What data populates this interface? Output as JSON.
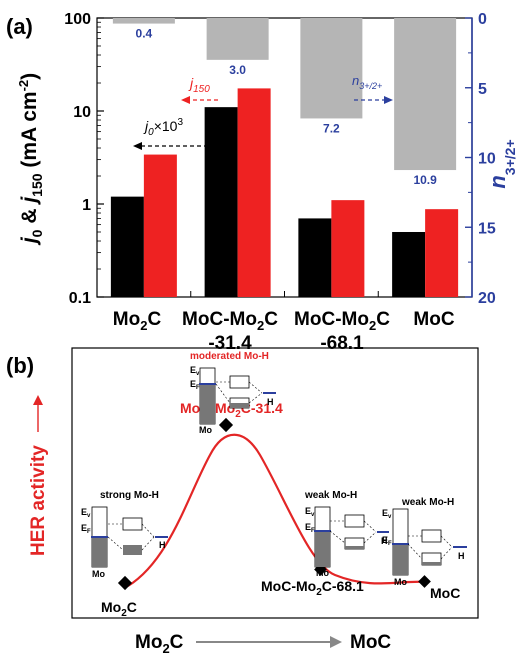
{
  "panel_a": {
    "label": "(a)",
    "chart_data": {
      "type": "bar",
      "categories": [
        "Mo2C",
        "MoC-Mo2C-31.4",
        "MoC-Mo2C-68.1",
        "MoC"
      ],
      "category_display": [
        {
          "main": "Mo",
          "sub": "2",
          "tail": "C",
          "line2": ""
        },
        {
          "main": "MoC-Mo",
          "sub": "2",
          "tail": "C",
          "line2": "-31.4"
        },
        {
          "main": "MoC-Mo",
          "sub": "2",
          "tail": "C",
          "line2": "-68.1"
        },
        {
          "main": "MoC",
          "sub": "",
          "tail": "",
          "line2": ""
        }
      ],
      "y_left": {
        "scale": "log",
        "min": 0.1,
        "max": 100,
        "ticks": [
          0.1,
          1,
          10,
          100
        ],
        "tick_labels": [
          "0.1",
          "1",
          "10",
          "100"
        ]
      },
      "y_right": {
        "scale": "linear",
        "min": 0,
        "max": 20,
        "inverted": true,
        "ticks": [
          0,
          5,
          10,
          15,
          20
        ],
        "tick_labels": [
          "0",
          "5",
          "10",
          "15",
          "20"
        ]
      },
      "series": [
        {
          "key": "j0x10^3",
          "color": "#000000",
          "axis": "left",
          "values": [
            1.2,
            11,
            0.7,
            0.5
          ]
        },
        {
          "key": "j150",
          "color": "#ee2222",
          "axis": "left",
          "values": [
            3.4,
            17.5,
            1.1,
            0.88
          ]
        },
        {
          "key": "n3+/2+",
          "color": "#b5b5b5",
          "axis": "right",
          "values": [
            0.4,
            3.0,
            7.2,
            10.9
          ]
        }
      ],
      "n_labels": [
        "0.4",
        "3.0",
        "7.2",
        "10.9"
      ],
      "annotations": {
        "j150": {
          "base": "j",
          "sub": "150"
        },
        "j0": {
          "base": "j",
          "sub": "0",
          "tail": "×10",
          "sup": "3"
        },
        "n": {
          "base": "n",
          "sub": "3+/2+"
        }
      },
      "ylabel_left": {
        "p1": "j",
        "s1": "0",
        "p2": " & ",
        "p3": "j",
        "s2": "150",
        "p4": " (mA cm",
        "sup": "-2",
        "p5": ")"
      },
      "ylabel_right": {
        "base": "n",
        "sub": "3+/2+"
      },
      "colors": {
        "axis_right": "#2b3f9e",
        "value_label": "#2b3f9e"
      }
    }
  },
  "panel_b": {
    "label": "(b)",
    "ylabel": "HER activity",
    "xlabel_left": {
      "main": "Mo",
      "sub": "2",
      "tail": "C"
    },
    "xlabel_right": "MoC",
    "point_labels": [
      {
        "main": "Mo",
        "sub": "2",
        "tail": "C"
      },
      {
        "main": "MoC-Mo",
        "sub": "2",
        "tail": "C-31.4"
      },
      {
        "main": "MoC-Mo",
        "sub": "2",
        "tail": "C-68.1"
      },
      {
        "main": "MoC",
        "sub": "",
        "tail": ""
      }
    ],
    "bond_labels": [
      "strong Mo-H",
      "moderated Mo-H",
      "weak Mo-H",
      "weak Mo-H"
    ],
    "schematic": {
      "ev": "E",
      "ev_sub": "v",
      "ef": "E",
      "ef_sub": "F",
      "mo": "Mo",
      "h": "H"
    },
    "colors": {
      "curve": "#e32626",
      "marker": "#000000",
      "fermi": "#2b3f9e",
      "accent_text": "#e32626"
    }
  }
}
